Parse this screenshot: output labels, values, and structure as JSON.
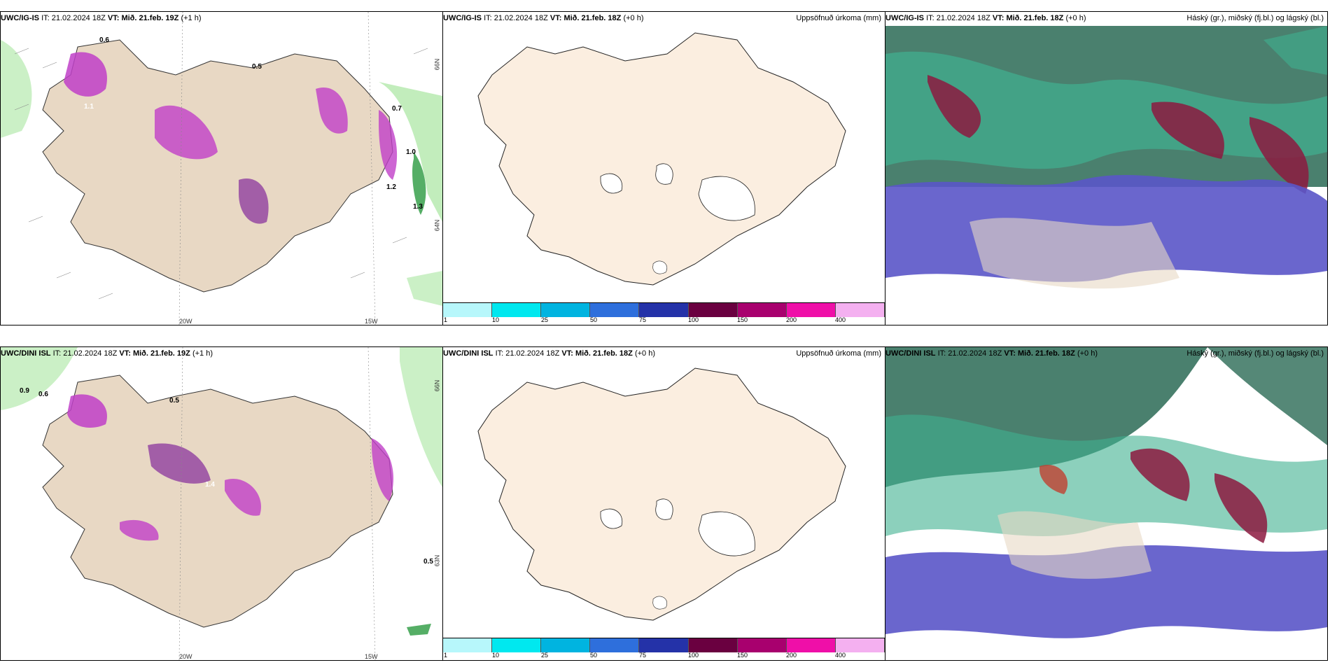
{
  "rows": [
    {
      "model": "UWC/IG-IS",
      "it_label": "IT:",
      "it": "21.02.2024 18Z",
      "vt_label": "VT:",
      "vt_left": "Mið. 21.feb. 19Z",
      "lead_left": "(+1 h)",
      "vt_mid": "Mið. 21.feb. 18Z",
      "lead_mid": "(+0 h)",
      "vt_right": "Mið. 21.feb. 18Z",
      "lead_right": "(+0 h)"
    },
    {
      "model": "UWC/DINI ISL",
      "it_label": "IT:",
      "it": "21.02.2024 18Z",
      "vt_label": "VT:",
      "vt_left": "Mið. 21.feb. 19Z",
      "lead_left": "(+1 h)",
      "vt_mid": "Mið. 21.feb. 18Z",
      "lead_mid": "(+0 h)",
      "vt_right": "Mið. 21.feb. 18Z",
      "lead_right": "(+0 h)"
    }
  ],
  "mid_title": "Uppsöfnuð úrkoma (mm)",
  "right_title": "Háský (gr.), miðský (fj.bl.) og lágský (bl.)",
  "colorbar": {
    "ticks": [
      "1",
      "10",
      "25",
      "50",
      "75",
      "100",
      "150",
      "200",
      "400"
    ],
    "colors": [
      "#b7f7fb",
      "#00e8ef",
      "#00b4e0",
      "#2e6fdc",
      "#2432a8",
      "#6a0040",
      "#a8006e",
      "#ef0fa8",
      "#f4b0f0"
    ]
  },
  "lon_labels": [
    "20W",
    "15W"
  ],
  "lat_labels": [
    "66N",
    "64N",
    "63N"
  ],
  "precip_values_top": [
    "0.5",
    "0.6",
    "1.0",
    "1.1",
    "1.2",
    "1.3",
    "0.7"
  ],
  "precip_values_bottom": [
    "0.5",
    "0.6",
    "0.9",
    "1.4",
    "0.5"
  ],
  "colors": {
    "land": "#e8d8c4",
    "land_mid": "#fbeee0",
    "precip": "#c040c8",
    "ocean_green": "#a8e6a0",
    "cloud_high": "#2a6a55",
    "cloud_mid": "#8c1a40",
    "cloud_low": "#5a55c8"
  }
}
